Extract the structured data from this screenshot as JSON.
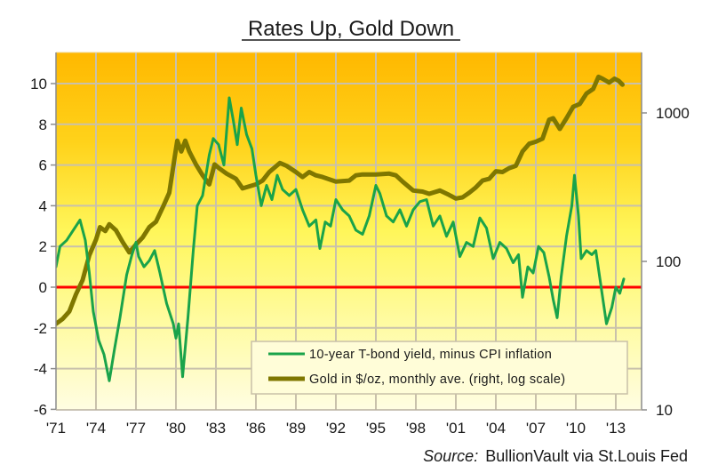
{
  "chart_data": {
    "type": "line",
    "title": "Rates Up, Gold Down",
    "xlabel": "",
    "ylabel": "",
    "x_range": [
      1971,
      2013.95
    ],
    "x_tick_values": [
      1971,
      1974,
      1977,
      1980,
      1983,
      1986,
      1989,
      1992,
      1995,
      1998,
      2001,
      2004,
      2007,
      2010,
      2013
    ],
    "x_tick_labels": [
      "'71",
      "'74",
      "'77",
      "'80",
      "'83",
      "'86",
      "'89",
      "'92",
      "'95",
      "'98",
      "'01",
      "'04",
      "'07",
      "'10",
      "'13"
    ],
    "y_left": {
      "range": [
        -6,
        12
      ],
      "ticks": [
        -6,
        -4,
        -2,
        0,
        2,
        4,
        6,
        8,
        10
      ],
      "tick_labels": [
        "-6",
        "-4",
        "-2",
        "0",
        "2",
        "4",
        "6",
        "8",
        "10"
      ]
    },
    "y_right": {
      "scale": "log",
      "range": [
        10,
        10000
      ],
      "ticks": [
        10,
        100,
        1000
      ],
      "tick_labels": [
        "10",
        "100",
        "1000"
      ]
    },
    "grid": true,
    "reference_line": {
      "axis": "left",
      "value": 0,
      "color": "#FF0000"
    },
    "legend": {
      "placement": "bottom-right"
    },
    "series": [
      {
        "name": "10-year T-bond yield, minus CPI inflation",
        "axis": "left",
        "color": "#1AA34A",
        "x": [
          1971.0,
          1971.3,
          1971.8,
          1972.5,
          1972.8,
          1973.2,
          1973.5,
          1973.8,
          1974.2,
          1974.6,
          1975.0,
          1975.4,
          1975.8,
          1976.3,
          1976.7,
          1977.0,
          1977.2,
          1977.6,
          1978.0,
          1978.4,
          1978.8,
          1979.3,
          1979.8,
          1980.0,
          1980.2,
          1980.5,
          1980.9,
          1981.3,
          1981.6,
          1982.0,
          1982.5,
          1982.8,
          1983.2,
          1983.6,
          1984.0,
          1984.3,
          1984.6,
          1984.9,
          1985.3,
          1985.7,
          1986.0,
          1986.4,
          1986.8,
          1987.2,
          1987.6,
          1988.0,
          1988.5,
          1989.0,
          1989.5,
          1990.0,
          1990.5,
          1990.8,
          1991.2,
          1991.6,
          1992.0,
          1992.5,
          1993.0,
          1993.5,
          1994.0,
          1994.5,
          1995.0,
          1995.3,
          1995.8,
          1996.3,
          1996.8,
          1997.3,
          1997.8,
          1998.3,
          1998.8,
          1999.3,
          1999.8,
          2000.3,
          2000.8,
          2001.3,
          2001.8,
          2002.3,
          2002.8,
          2003.3,
          2003.8,
          2004.3,
          2004.8,
          2005.3,
          2005.7,
          2006.0,
          2006.4,
          2006.8,
          2007.2,
          2007.6,
          2008.0,
          2008.3,
          2008.6,
          2008.9,
          2009.3,
          2009.7,
          2009.9,
          2010.2,
          2010.4,
          2010.8,
          2011.2,
          2011.5,
          2011.9,
          2012.3,
          2012.7,
          2013.0,
          2013.3,
          2013.6
        ],
        "values": [
          1.0,
          2.0,
          2.3,
          3.0,
          3.3,
          2.3,
          0.7,
          -1.2,
          -2.6,
          -3.3,
          -4.6,
          -3.0,
          -1.5,
          0.6,
          1.6,
          2.2,
          1.5,
          1.0,
          1.3,
          1.8,
          0.7,
          -0.8,
          -1.8,
          -2.5,
          -1.8,
          -4.4,
          -1.5,
          1.8,
          4.0,
          4.5,
          6.5,
          7.3,
          7.0,
          6.0,
          9.3,
          8.2,
          7.0,
          8.8,
          7.5,
          6.8,
          5.5,
          4.0,
          5.0,
          4.3,
          5.5,
          4.8,
          4.5,
          4.8,
          3.8,
          3.0,
          3.3,
          1.9,
          3.2,
          3.0,
          4.3,
          3.8,
          3.5,
          2.8,
          2.6,
          3.5,
          5.0,
          4.6,
          3.5,
          3.2,
          3.8,
          3.0,
          3.8,
          4.2,
          4.3,
          3.0,
          3.5,
          2.5,
          3.2,
          1.5,
          2.2,
          2.0,
          3.4,
          2.9,
          1.4,
          2.2,
          1.9,
          1.2,
          1.6,
          -0.5,
          1.0,
          0.7,
          2.0,
          1.7,
          0.5,
          -0.6,
          -1.5,
          0.5,
          2.5,
          4.0,
          5.5,
          3.5,
          1.4,
          1.8,
          1.6,
          1.8,
          0.0,
          -1.8,
          -1.0,
          0.0,
          -0.3,
          0.4
        ]
      },
      {
        "name": "Gold in $/oz, monthly ave. (right, log scale)",
        "axis": "right",
        "color": "#7F7700",
        "x": [
          1971.0,
          1971.5,
          1972.0,
          1972.5,
          1973.0,
          1973.5,
          1974.0,
          1974.3,
          1974.7,
          1975.0,
          1975.5,
          1976.0,
          1976.5,
          1977.0,
          1977.5,
          1978.0,
          1978.5,
          1979.0,
          1979.5,
          1979.9,
          1980.1,
          1980.4,
          1980.7,
          1981.0,
          1981.5,
          1982.0,
          1982.5,
          1982.9,
          1983.3,
          1983.8,
          1984.5,
          1985.0,
          1985.5,
          1986.0,
          1986.5,
          1987.0,
          1987.8,
          1988.3,
          1989.0,
          1989.5,
          1990.0,
          1990.5,
          1991.0,
          1992.0,
          1993.0,
          1993.5,
          1994.0,
          1995.0,
          1996.0,
          1996.5,
          1997.0,
          1997.8,
          1998.5,
          1999.0,
          1999.8,
          2000.5,
          2001.0,
          2001.5,
          2002.0,
          2002.5,
          2003.0,
          2003.5,
          2004.0,
          2004.5,
          2005.0,
          2005.5,
          2006.0,
          2006.5,
          2007.0,
          2007.5,
          2008.0,
          2008.3,
          2008.8,
          2009.3,
          2009.8,
          2010.3,
          2010.8,
          2011.3,
          2011.7,
          2012.0,
          2012.5,
          2012.9,
          2013.2,
          2013.5
        ],
        "values": [
          38,
          41,
          46,
          60,
          75,
          110,
          140,
          170,
          160,
          178,
          162,
          135,
          115,
          130,
          145,
          170,
          185,
          230,
          290,
          500,
          650,
          550,
          650,
          550,
          450,
          380,
          330,
          450,
          420,
          390,
          360,
          310,
          320,
          330,
          350,
          400,
          460,
          440,
          400,
          370,
          400,
          380,
          370,
          345,
          350,
          380,
          385,
          385,
          390,
          380,
          345,
          300,
          295,
          285,
          300,
          280,
          265,
          270,
          290,
          315,
          350,
          360,
          405,
          400,
          425,
          440,
          550,
          620,
          640,
          670,
          900,
          920,
          780,
          920,
          1100,
          1150,
          1350,
          1450,
          1750,
          1700,
          1600,
          1700,
          1650,
          1550
        ]
      }
    ],
    "source": {
      "label": "Source:",
      "text": "BullionVault via St.Louis Fed"
    }
  }
}
